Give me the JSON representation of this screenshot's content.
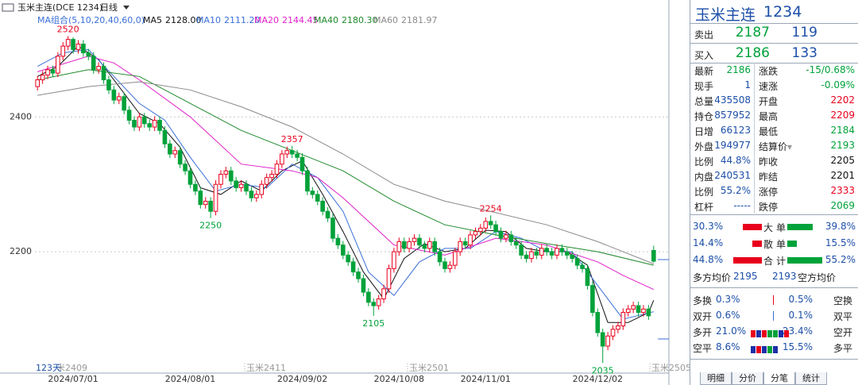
{
  "chart_data": {
    "type": "candlestick",
    "title": "玉米主连(DCE 1234)",
    "period": "日线",
    "ma_group": "MA组合(5,10,20,40,60,0)",
    "footer": "123天",
    "contracts": [
      "玉米2409",
      "玉米2411",
      "玉米2501",
      "玉米2505"
    ],
    "up_color": "#e8001c",
    "down_color": "#00a23a",
    "grid": true,
    "ylim": [
      2020,
      2564
    ],
    "yticks": [
      2200,
      2400
    ],
    "categories": [
      null,
      null,
      null,
      null,
      null,
      null,
      null,
      "2024/07/01",
      null,
      null,
      null,
      null,
      null,
      null,
      null,
      null,
      null,
      null,
      null,
      null,
      null,
      null,
      null,
      null,
      null,
      null,
      null,
      null,
      null,
      null,
      "2024/08/01",
      null,
      null,
      null,
      null,
      null,
      null,
      null,
      null,
      null,
      null,
      null,
      null,
      null,
      null,
      null,
      null,
      null,
      null,
      null,
      null,
      null,
      "2024/09/02",
      null,
      null,
      null,
      null,
      null,
      null,
      null,
      null,
      null,
      null,
      null,
      null,
      null,
      null,
      null,
      null,
      null,
      null,
      "2024/10/08",
      null,
      null,
      null,
      null,
      null,
      null,
      null,
      null,
      null,
      null,
      null,
      null,
      null,
      null,
      null,
      null,
      "2024/11/01",
      null,
      null,
      null,
      null,
      null,
      null,
      null,
      null,
      null,
      null,
      null,
      null,
      null,
      null,
      null,
      null,
      null,
      null,
      null,
      null,
      null,
      "2024/12/02",
      null,
      null,
      null,
      null,
      null,
      null,
      null,
      null,
      null,
      null,
      null
    ],
    "open": [
      2445,
      2455,
      2462,
      2470,
      2465,
      2490,
      2505,
      2515,
      2500,
      2508,
      2495,
      2490,
      2470,
      2475,
      2455,
      2440,
      2425,
      2430,
      2410,
      2395,
      2385,
      2400,
      2390,
      2385,
      2395,
      2380,
      2360,
      2345,
      2350,
      2330,
      2320,
      2300,
      2290,
      2270,
      2275,
      2260,
      2300,
      2315,
      2320,
      2305,
      2295,
      2300,
      2290,
      2280,
      2285,
      2300,
      2310,
      2315,
      2330,
      2345,
      2350,
      2345,
      2340,
      2320,
      2290,
      2285,
      2275,
      2260,
      2250,
      2220,
      2210,
      2195,
      2185,
      2170,
      2160,
      2140,
      2125,
      2120,
      2130,
      2145,
      2175,
      2200,
      2215,
      2205,
      2215,
      2220,
      2210,
      2205,
      2215,
      2200,
      2185,
      2175,
      2180,
      2200,
      2215,
      2210,
      2225,
      2230,
      2235,
      2245,
      2240,
      2230,
      2220,
      2225,
      2215,
      2210,
      2195,
      2190,
      2200,
      2195,
      2205,
      2200,
      2195,
      2205,
      2200,
      2195,
      2190,
      2180,
      2175,
      2150,
      2110,
      2080,
      2060,
      2075,
      2085,
      2090,
      2110,
      2115,
      2120,
      2110,
      2115,
      2202
    ],
    "high": [
      2461,
      2468,
      2476,
      2476,
      2496,
      2511,
      2520,
      2518,
      2514,
      2514,
      2501,
      2496,
      2481,
      2481,
      2461,
      2446,
      2436,
      2436,
      2416,
      2401,
      2406,
      2406,
      2396,
      2401,
      2401,
      2386,
      2366,
      2356,
      2356,
      2336,
      2326,
      2306,
      2296,
      2281,
      2281,
      2306,
      2321,
      2326,
      2326,
      2311,
      2306,
      2306,
      2296,
      2291,
      2306,
      2316,
      2321,
      2336,
      2351,
      2356,
      2357,
      2351,
      2346,
      2326,
      2296,
      2291,
      2281,
      2266,
      2256,
      2226,
      2216,
      2201,
      2191,
      2176,
      2166,
      2146,
      2131,
      2136,
      2151,
      2181,
      2206,
      2221,
      2221,
      2221,
      2226,
      2226,
      2216,
      2221,
      2221,
      2206,
      2191,
      2186,
      2206,
      2221,
      2221,
      2231,
      2236,
      2241,
      2251,
      2254,
      2246,
      2236,
      2231,
      2231,
      2221,
      2216,
      2201,
      2206,
      2206,
      2211,
      2211,
      2206,
      2211,
      2211,
      2206,
      2201,
      2196,
      2186,
      2181,
      2156,
      2116,
      2086,
      2081,
      2091,
      2096,
      2116,
      2121,
      2126,
      2126,
      2121,
      2121,
      2209
    ],
    "low": [
      2439,
      2449,
      2456,
      2459,
      2459,
      2484,
      2499,
      2494,
      2494,
      2489,
      2484,
      2464,
      2464,
      2449,
      2434,
      2419,
      2419,
      2404,
      2389,
      2379,
      2379,
      2384,
      2379,
      2379,
      2374,
      2354,
      2339,
      2339,
      2324,
      2314,
      2294,
      2284,
      2264,
      2264,
      2250,
      2254,
      2294,
      2309,
      2299,
      2289,
      2289,
      2284,
      2274,
      2274,
      2279,
      2294,
      2304,
      2309,
      2324,
      2339,
      2339,
      2334,
      2314,
      2284,
      2279,
      2269,
      2254,
      2244,
      2214,
      2204,
      2189,
      2179,
      2164,
      2154,
      2134,
      2119,
      2105,
      2114,
      2124,
      2139,
      2169,
      2194,
      2199,
      2199,
      2209,
      2204,
      2199,
      2199,
      2194,
      2179,
      2169,
      2169,
      2174,
      2194,
      2204,
      2204,
      2219,
      2224,
      2229,
      2234,
      2224,
      2214,
      2214,
      2209,
      2204,
      2189,
      2184,
      2184,
      2189,
      2189,
      2194,
      2189,
      2189,
      2194,
      2189,
      2184,
      2174,
      2169,
      2144,
      2104,
      2074,
      2035,
      2054,
      2069,
      2079,
      2084,
      2104,
      2109,
      2104,
      2104,
      2099,
      2184
    ],
    "close": [
      2455,
      2462,
      2470,
      2465,
      2490,
      2505,
      2515,
      2500,
      2508,
      2495,
      2490,
      2470,
      2475,
      2455,
      2440,
      2425,
      2430,
      2410,
      2395,
      2385,
      2400,
      2390,
      2385,
      2395,
      2380,
      2360,
      2345,
      2350,
      2330,
      2320,
      2300,
      2290,
      2270,
      2275,
      2260,
      2300,
      2315,
      2320,
      2305,
      2295,
      2300,
      2290,
      2280,
      2285,
      2300,
      2310,
      2315,
      2330,
      2345,
      2350,
      2345,
      2340,
      2320,
      2290,
      2285,
      2275,
      2260,
      2250,
      2220,
      2210,
      2195,
      2185,
      2170,
      2160,
      2140,
      2125,
      2120,
      2130,
      2145,
      2175,
      2200,
      2215,
      2205,
      2215,
      2220,
      2210,
      2205,
      2215,
      2200,
      2185,
      2175,
      2180,
      2200,
      2215,
      2210,
      2225,
      2230,
      2235,
      2245,
      2240,
      2230,
      2220,
      2225,
      2215,
      2210,
      2195,
      2190,
      2200,
      2195,
      2205,
      2200,
      2195,
      2205,
      2200,
      2195,
      2190,
      2180,
      2175,
      2150,
      2110,
      2080,
      2060,
      2075,
      2085,
      2090,
      2110,
      2115,
      2120,
      2110,
      2115,
      2105,
      2186
    ],
    "series": [
      {
        "name": "MA5",
        "legend_value": "2128.00",
        "color": "#111111",
        "x": [
          0,
          4,
          8,
          12,
          16,
          20,
          24,
          28,
          32,
          36,
          40,
          44,
          48,
          52,
          56,
          60,
          64,
          68,
          72,
          76,
          80,
          84,
          88,
          92,
          96,
          100,
          104,
          108,
          112,
          116,
          120,
          121
        ],
        "values": [
          2460,
          2475,
          2505,
          2485,
          2445,
          2405,
          2390,
          2355,
          2295,
          2285,
          2305,
          2290,
          2320,
          2335,
          2285,
          2230,
          2170,
          2130,
          2190,
          2212,
          2200,
          2205,
          2232,
          2230,
          2205,
          2200,
          2200,
          2180,
          2095,
          2095,
          2110,
          2128
        ]
      },
      {
        "name": "MA10",
        "legend_value": "2111.20",
        "color": "#3a6fd8",
        "x": [
          0,
          5,
          10,
          15,
          20,
          25,
          30,
          35,
          40,
          45,
          50,
          55,
          60,
          65,
          70,
          75,
          80,
          85,
          90,
          95,
          100,
          105,
          110,
          115,
          121
        ],
        "values": [
          2475,
          2495,
          2500,
          2460,
          2420,
          2395,
          2340,
          2290,
          2300,
          2295,
          2330,
          2310,
          2260,
          2170,
          2135,
          2185,
          2205,
          2205,
          2230,
          2220,
          2200,
          2200,
          2150,
          2100,
          2111
        ]
      },
      {
        "name": "MA20",
        "legend_value": "2144.45",
        "color": "#e020c8",
        "x": [
          0,
          10,
          15,
          20,
          30,
          40,
          50,
          55,
          60,
          70,
          80,
          90,
          100,
          110,
          115,
          121
        ],
        "values": [
          2467,
          2490,
          2480,
          2455,
          2400,
          2330,
          2320,
          2310,
          2280,
          2210,
          2195,
          2220,
          2210,
          2185,
          2165,
          2144
        ]
      },
      {
        "name": "MA40",
        "legend_value": "2180.30",
        "color": "#1f8a2c",
        "x": [
          0,
          10,
          20,
          30,
          40,
          50,
          60,
          70,
          80,
          90,
          100,
          110,
          121
        ],
        "values": [
          2455,
          2470,
          2460,
          2420,
          2380,
          2350,
          2320,
          2275,
          2240,
          2225,
          2212,
          2200,
          2180
        ]
      },
      {
        "name": "MA60",
        "legend_value": "2181.97",
        "color": "#8a8a8a",
        "x": [
          0,
          10,
          20,
          30,
          40,
          50,
          60,
          70,
          80,
          90,
          100,
          110,
          121
        ],
        "values": [
          2432,
          2445,
          2452,
          2440,
          2415,
          2385,
          2345,
          2300,
          2275,
          2258,
          2240,
          2215,
          2182
        ]
      }
    ]
  },
  "panel": {
    "title": "玉米主连",
    "code": "1234",
    "sell": {
      "label": "卖出",
      "price": "2187",
      "volume": "119"
    },
    "buy": {
      "label": "买入",
      "price": "2186",
      "volume": "133"
    },
    "stats": [
      {
        "l": "最新",
        "lv": "2186",
        "lc": "#00a23a",
        "r": "涨跌",
        "rv": "-15/0.68%",
        "rc": "#00a23a"
      },
      {
        "l": "现手",
        "lv": "1",
        "lc": "#1c4fa8",
        "r": "速涨",
        "rv": "-0.09%",
        "rc": "#00a23a"
      },
      {
        "l": "总量",
        "lv": "435508",
        "lc": "#1c4fa8",
        "r": "开盘",
        "rv": "2202",
        "rc": "#e8001c"
      },
      {
        "l": "持仓",
        "lv": "857952",
        "lc": "#1c4fa8",
        "r": "最高",
        "rv": "2209",
        "rc": "#e8001c"
      },
      {
        "l": "日增",
        "lv": "66123",
        "lc": "#1c4fa8",
        "r": "最低",
        "rv": "2184",
        "rc": "#00a23a"
      },
      {
        "l": "外盘",
        "lv": "194977",
        "lc": "#1c4fa8",
        "r": "结算价",
        "rv": "2193",
        "rc": "#00a23a"
      },
      {
        "l": "比例",
        "lv": "44.8%",
        "lc": "#1c4fa8",
        "r": "昨收",
        "rv": "2205",
        "rc": "#111111"
      },
      {
        "l": "内盘",
        "lv": "240531",
        "lc": "#1c4fa8",
        "r": "昨结",
        "rv": "2201",
        "rc": "#111111"
      },
      {
        "l": "比例",
        "lv": "55.2%",
        "lc": "#1c4fa8",
        "r": "涨停",
        "rv": "2333",
        "rc": "#e8001c"
      },
      {
        "l": "杠杆",
        "lv": "-----",
        "lc": "#1c4fa8",
        "r": "跌停",
        "rv": "2069",
        "rc": "#00a23a"
      }
    ],
    "orders": [
      {
        "label": "大单",
        "buy": {
          "value": 30.3,
          "label": "30.3%"
        },
        "sell": {
          "value": 39.8,
          "label": "39.8%"
        }
      },
      {
        "label": "散单",
        "buy": {
          "value": 14.4,
          "label": "14.4%"
        },
        "sell": {
          "value": 15.5,
          "label": "15.5%"
        }
      },
      {
        "label": "合计",
        "buy": {
          "value": 44.8,
          "label": "44.8%"
        },
        "sell": {
          "value": 55.2,
          "label": "55.2%"
        }
      }
    ],
    "avg": {
      "buy_label": "多方均价",
      "buy": "2195",
      "sell": "2193",
      "sell_label": "空方均价"
    },
    "flow": [
      {
        "l": "多换",
        "lv": "0.3%",
        "rv": "0.5%",
        "r": "空换"
      },
      {
        "l": "双开",
        "lv": "0.6%",
        "rv": "0.1%",
        "r": "双平"
      },
      {
        "l": "多开",
        "lv": "21.0%",
        "rv": "23.4%",
        "r": "空开"
      },
      {
        "l": "空平",
        "lv": "8.6%",
        "rv": "15.5%",
        "r": "多平"
      }
    ],
    "tabs": [
      "明细",
      "分价",
      "分笔",
      "统计"
    ]
  }
}
